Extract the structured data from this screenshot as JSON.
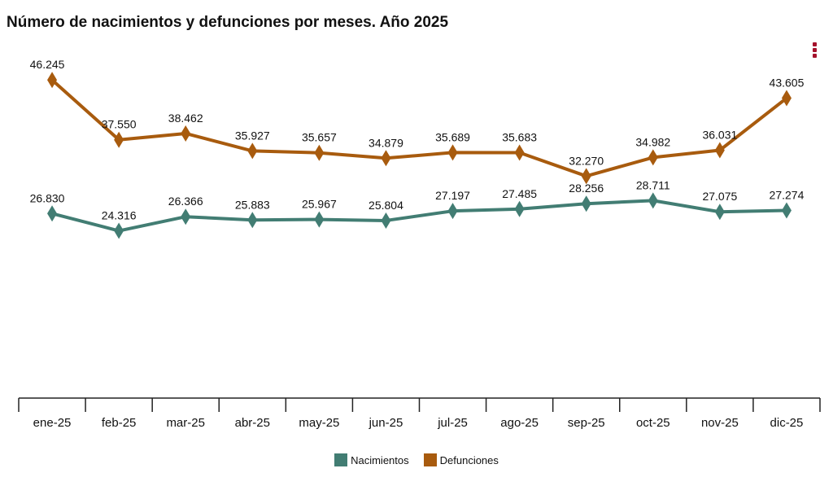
{
  "chart_data": {
    "type": "line",
    "title": "Número de nacimientos y defunciones por meses. Año 2025",
    "categories": [
      "ene-25",
      "feb-25",
      "mar-25",
      "abr-25",
      "may-25",
      "jun-25",
      "jul-25",
      "ago-25",
      "sep-25",
      "oct-25",
      "nov-25",
      "dic-25"
    ],
    "series": [
      {
        "name": "Nacimientos",
        "color": "#427d73",
        "values": [
          26830,
          24316,
          26366,
          25883,
          25967,
          25804,
          27197,
          27485,
          28256,
          28711,
          27075,
          27274
        ],
        "labels": [
          "26.830",
          "24.316",
          "26.366",
          "25.883",
          "25.967",
          "25.804",
          "27.197",
          "27.485",
          "28.256",
          "28.711",
          "27.075",
          "27.274"
        ]
      },
      {
        "name": "Defunciones",
        "color": "#a85b0e",
        "values": [
          46245,
          37550,
          38462,
          35927,
          35657,
          34879,
          35689,
          35683,
          32270,
          34982,
          36031,
          43605
        ],
        "labels": [
          "46.245",
          "37.550",
          "38.462",
          "35.927",
          "35.657",
          "34.879",
          "35.689",
          "35.683",
          "32.270",
          "34.982",
          "36.031",
          "43.605"
        ]
      }
    ],
    "ylim": [
      0,
      50000
    ],
    "y_axis_visible": false,
    "grid": false,
    "marker": "diamond",
    "legend_position": "bottom"
  },
  "menu": {
    "icon": "kebab-menu-icon",
    "color": "#a5122c"
  }
}
